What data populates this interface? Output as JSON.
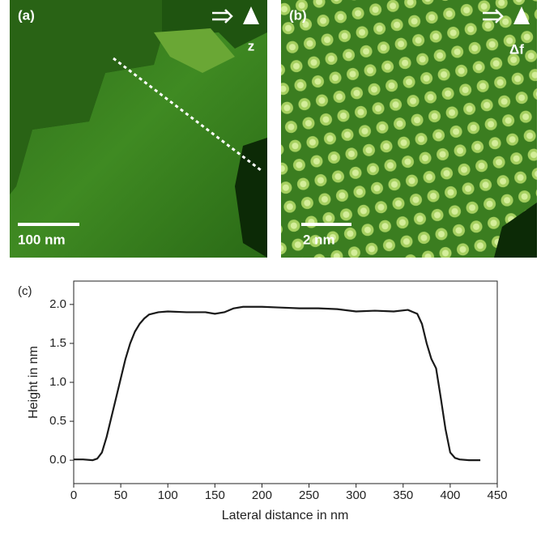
{
  "panels": {
    "a": {
      "label": "(a)",
      "axis_symbol": "z",
      "scale_bar": "100 nm"
    },
    "b": {
      "label": "(b)",
      "axis_symbol": "Δf",
      "scale_bar": "2 nm"
    }
  },
  "chart_data": {
    "type": "line",
    "label": "(c)",
    "x_label": "Lateral distance in nm",
    "y_label": "Height in nm",
    "xlim": [
      0,
      450
    ],
    "ylim": [
      -0.3,
      2.3
    ],
    "xticks": [
      0,
      50,
      100,
      150,
      200,
      250,
      300,
      350,
      400,
      450
    ],
    "yticks": [
      {
        "value": 0,
        "label": "0.0"
      },
      {
        "value": 0.5,
        "label": "0.5"
      },
      {
        "value": 1,
        "label": "1.0"
      },
      {
        "value": 1.5,
        "label": "1.5"
      },
      {
        "value": 2,
        "label": "2.0"
      }
    ],
    "x": [
      0,
      10,
      20,
      25,
      30,
      35,
      40,
      45,
      50,
      55,
      60,
      65,
      70,
      75,
      80,
      90,
      100,
      120,
      140,
      150,
      160,
      170,
      180,
      200,
      220,
      240,
      260,
      280,
      300,
      320,
      340,
      355,
      365,
      370,
      375,
      380,
      385,
      390,
      395,
      400,
      405,
      410,
      420,
      432
    ],
    "series": [
      {
        "color": "#1a1a1a",
        "values": [
          0.01,
          0.01,
          0.0,
          0.02,
          0.1,
          0.3,
          0.55,
          0.8,
          1.05,
          1.3,
          1.5,
          1.65,
          1.75,
          1.82,
          1.87,
          1.9,
          1.91,
          1.9,
          1.9,
          1.88,
          1.9,
          1.95,
          1.97,
          1.97,
          1.96,
          1.95,
          1.95,
          1.94,
          1.91,
          1.92,
          1.91,
          1.93,
          1.88,
          1.75,
          1.5,
          1.3,
          1.18,
          0.8,
          0.4,
          0.1,
          0.03,
          0.01,
          0.0,
          0.0
        ]
      }
    ]
  }
}
